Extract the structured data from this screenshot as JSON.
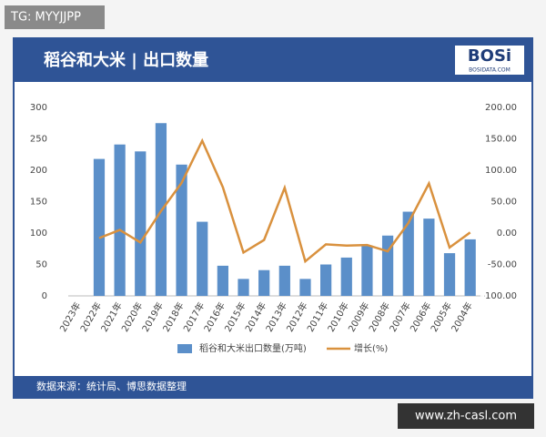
{
  "page": {
    "tag": "TG: MYYJJPP",
    "logo": "BOSi",
    "logo_sub": "BOSIDATA.COM",
    "source": "数据来源：统计局、博思数据整理",
    "site": "www.zh-casl.com"
  },
  "chart_data": {
    "type": "bar-line",
    "title": "稻谷和大米 | 出口数量",
    "categories": [
      "2023年",
      "2022年",
      "2021年",
      "2020年",
      "2019年",
      "2018年",
      "2017年",
      "2016年",
      "2015年",
      "2014年",
      "2013年",
      "2012年",
      "2011年",
      "2010年",
      "2009年",
      "2008年",
      "2007年",
      "2006年",
      "2005年",
      "2004年"
    ],
    "series": [
      {
        "name": "稻谷和大米出口数量(万吨)",
        "type": "bar",
        "color": "#5b8fc9",
        "values": [
          null,
          218,
          241,
          230,
          275,
          209,
          118,
          48,
          27,
          41,
          48,
          27,
          50,
          61,
          80,
          96,
          134,
          123,
          68,
          90
        ]
      },
      {
        "name": "增长(%)",
        "type": "line",
        "axis": "y2",
        "color": "#d9913e",
        "values": [
          null,
          -8,
          5,
          -15,
          35,
          80,
          147,
          73,
          -31,
          -11,
          72,
          -45,
          -18,
          -20,
          -19,
          -29,
          16,
          79,
          -23,
          1
        ]
      }
    ],
    "ylim": [
      0,
      300
    ],
    "yticks": [
      0,
      50,
      100,
      150,
      200,
      250,
      300
    ],
    "y2lim": [
      -100,
      200
    ],
    "y2ticks": [
      {
        "value": -100,
        "label": "-100.00"
      },
      {
        "value": -50,
        "label": "-50.00"
      },
      {
        "value": 0,
        "label": "0.00"
      },
      {
        "value": 50,
        "label": "50.00"
      },
      {
        "value": 100,
        "label": "100.00"
      },
      {
        "value": 150,
        "label": "150.00"
      },
      {
        "value": 200,
        "label": "200.00"
      }
    ],
    "legend": "bottom"
  }
}
